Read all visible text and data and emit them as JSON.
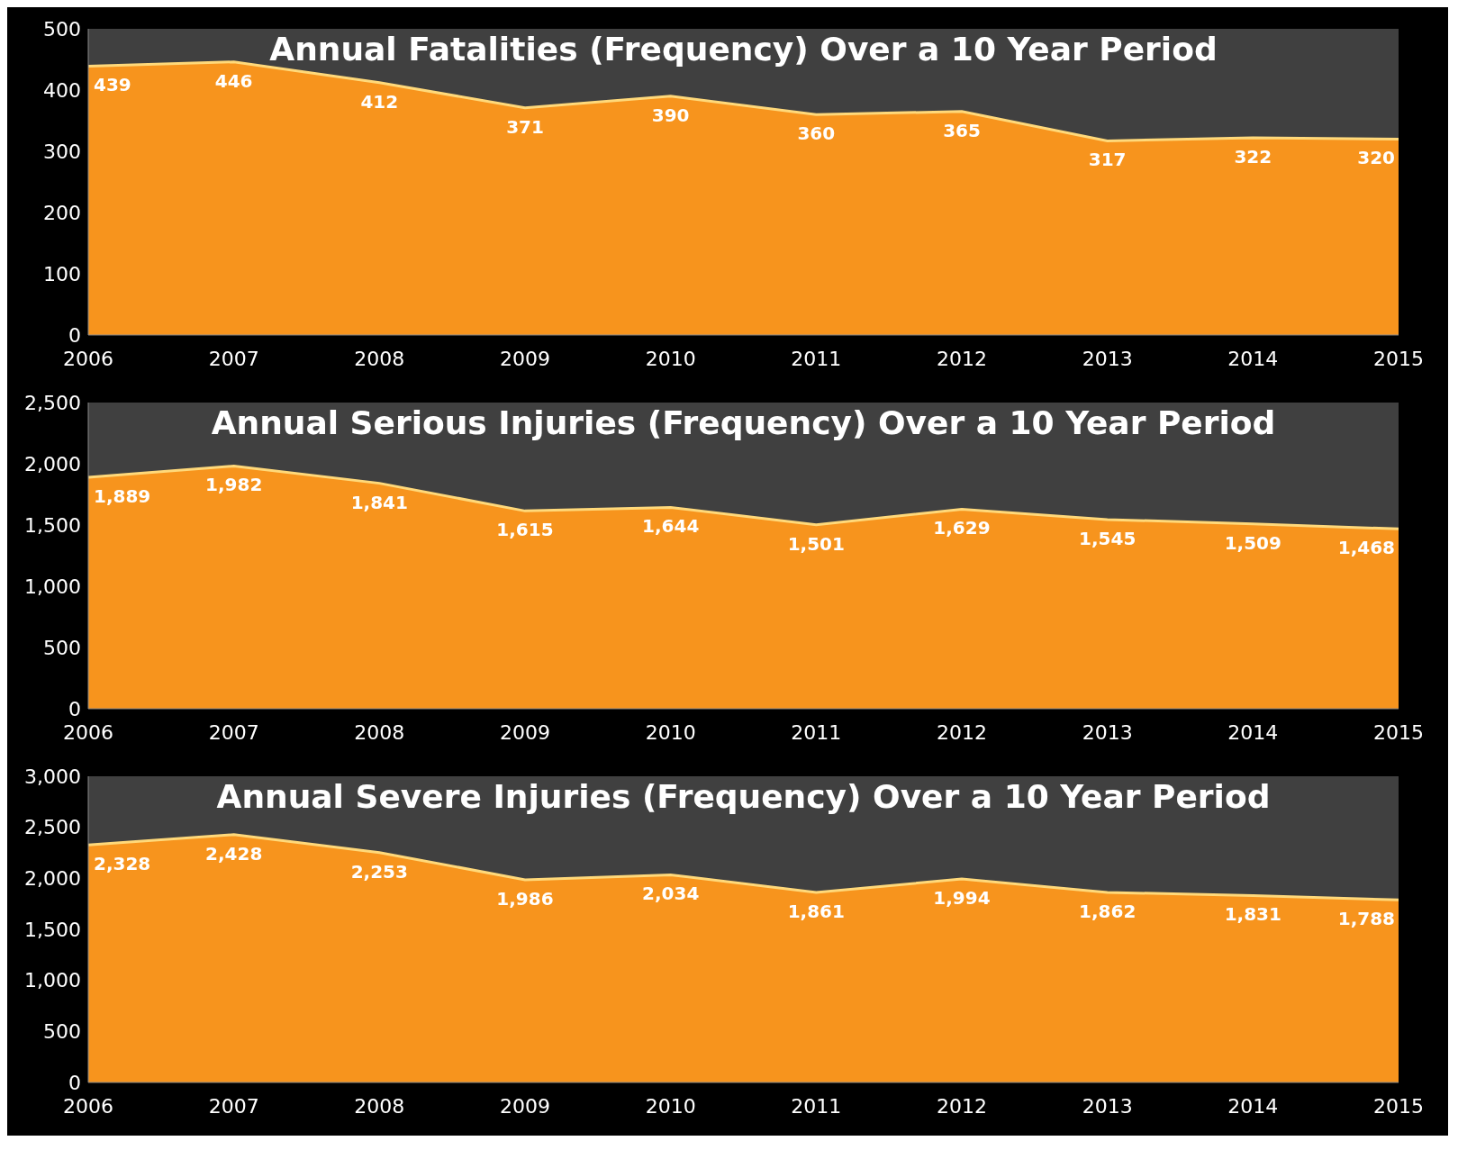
{
  "chart_data": [
    {
      "type": "area",
      "title": "Annual Fatalities (Frequency) Over a 10 Year Period",
      "categories": [
        "2006",
        "2007",
        "2008",
        "2009",
        "2010",
        "2011",
        "2012",
        "2013",
        "2014",
        "2015"
      ],
      "values": [
        439,
        446,
        412,
        371,
        390,
        360,
        365,
        317,
        322,
        320
      ],
      "color": "#f7941d",
      "ylim": [
        0,
        500
      ],
      "yticks": [
        0,
        100,
        200,
        300,
        400,
        500
      ],
      "data_labels": true
    },
    {
      "type": "area",
      "title": "Annual Serious Injuries (Frequency) Over a 10 Year Period",
      "categories": [
        "2006",
        "2007",
        "2008",
        "2009",
        "2010",
        "2011",
        "2012",
        "2013",
        "2014",
        "2015"
      ],
      "values": [
        1889,
        1982,
        1841,
        1615,
        1644,
        1501,
        1629,
        1545,
        1509,
        1468
      ],
      "value_labels": [
        "1,889",
        "1,982",
        "1,841",
        "1,615",
        "1,644",
        "1,501",
        "1,629",
        "1,545",
        "1,509",
        "1,468"
      ],
      "color": "#f7941d",
      "ylim": [
        0,
        2500
      ],
      "yticks": [
        0,
        500,
        {
          "value": 1000,
          "label": "1,000"
        },
        {
          "value": 1500,
          "label": "1,500"
        },
        {
          "value": 2000,
          "label": "2,000"
        },
        {
          "value": 2500,
          "label": "2,500"
        }
      ]
    },
    {
      "type": "area",
      "title": "Annual Severe Injuries (Frequency) Over a 10 Year Period",
      "categories": [
        "2006",
        "2007",
        "2008",
        "2009",
        "2010",
        "2011",
        "2012",
        "2013",
        "2014",
        "2015"
      ],
      "values": [
        2328,
        2428,
        2253,
        1986,
        2034,
        1861,
        1994,
        1862,
        1831,
        1788
      ],
      "value_labels": [
        "2,328",
        "2,428",
        "2,253",
        "1,986",
        "2,034",
        "1,861",
        "1,994",
        "1,862",
        "1,831",
        "1,788"
      ],
      "color": "#f7941d",
      "ylim": [
        0,
        3000
      ],
      "yticks": [
        0,
        500,
        {
          "value": 1000,
          "label": "1,000"
        },
        {
          "value": 1500,
          "label": "1,500"
        },
        {
          "value": 2000,
          "label": "2,000"
        },
        {
          "value": 2500,
          "label": "2,500"
        },
        {
          "value": 3000,
          "label": "3,000"
        }
      ]
    }
  ]
}
